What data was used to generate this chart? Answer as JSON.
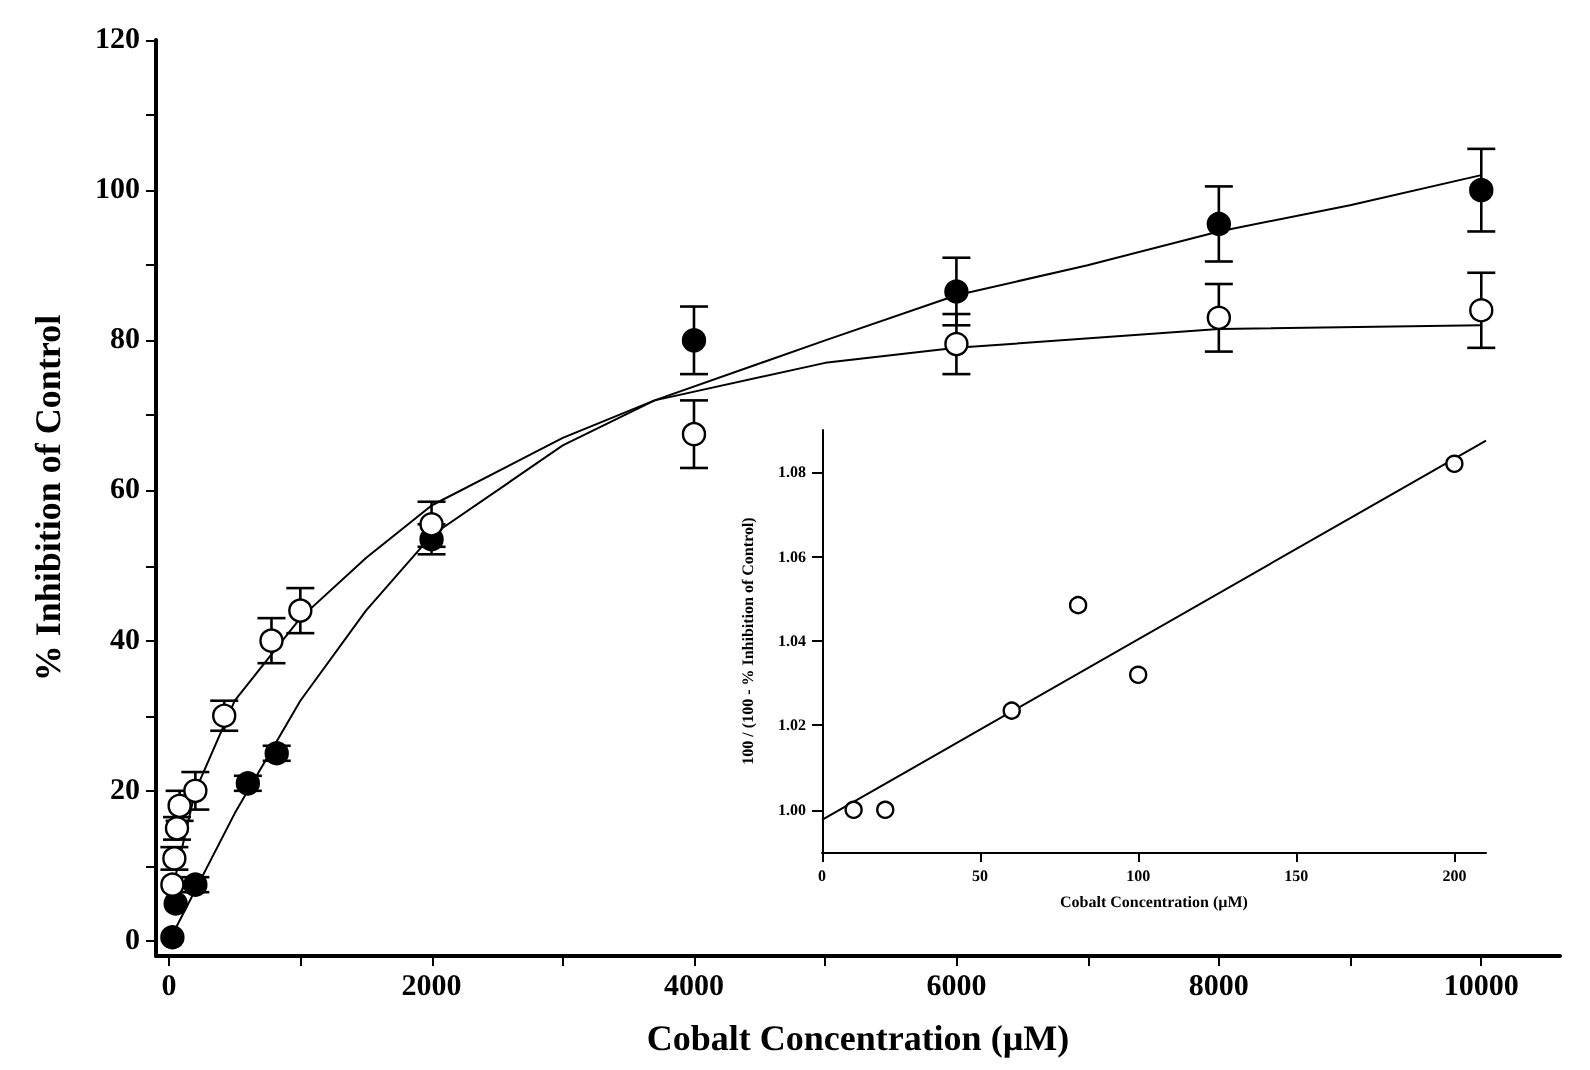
{
  "chart_data": [
    {
      "type": "scatter",
      "xlabel": "Cobalt Concentration (µM)",
      "ylabel": "% Inhibition of Control",
      "xlim": [
        -100,
        10600
      ],
      "ylim": [
        -2,
        120
      ],
      "xticks": [
        0,
        {
          "value": 1000,
          "label": null
        },
        2000,
        {
          "value": 3000,
          "label": null
        },
        4000,
        {
          "value": 5000,
          "label": null
        },
        6000,
        {
          "value": 7000,
          "label": null
        },
        8000,
        {
          "value": 9000,
          "label": null
        },
        10000
      ],
      "yticks": [
        0,
        {
          "value": 10,
          "label": null
        },
        20,
        {
          "value": 30,
          "label": null
        },
        40,
        {
          "value": 50,
          "label": null
        },
        60,
        {
          "value": 70,
          "label": null
        },
        80,
        {
          "value": 90,
          "label": null
        },
        100,
        {
          "value": 110,
          "label": null
        },
        120
      ],
      "marker": "circle",
      "series": [
        {
          "color": "#000000",
          "x": [
            25,
            50,
            200,
            600,
            820,
            2000,
            4000,
            6000,
            8000,
            10000
          ],
          "values": [
            0.5,
            5,
            7.5,
            21,
            25,
            53.5,
            80,
            86.5,
            95.5,
            100
          ],
          "errors": [
            null,
            null,
            1,
            1,
            1,
            2,
            4.5,
            4.5,
            5,
            5.5
          ]
        },
        {
          "color": "#ffffff",
          "x": [
            25,
            40,
            60,
            80,
            200,
            420,
            780,
            1000,
            2000,
            4000,
            6000,
            8000,
            10000
          ],
          "values": [
            7.5,
            11,
            15,
            18,
            20,
            30,
            40,
            44,
            55.5,
            67.5,
            79.5,
            83,
            84
          ],
          "errors": [
            null,
            1.5,
            1.5,
            2,
            2.5,
            2,
            3,
            3,
            3,
            4.5,
            4,
            4.5,
            5
          ]
        },
        {
          "type": "line",
          "marker": "none",
          "color": "#000000",
          "x": [
            0,
            500,
            1000,
            1500,
            2000,
            3000,
            3700,
            5000,
            6000,
            7000,
            8000,
            9000,
            10000
          ],
          "values": [
            0,
            17,
            32,
            44,
            54,
            66,
            72,
            80,
            86,
            90,
            94.5,
            98,
            102
          ]
        },
        {
          "type": "line",
          "marker": "none",
          "color": "#000000",
          "x": [
            0,
            200,
            500,
            1000,
            1500,
            2000,
            3000,
            3700,
            5000,
            6000,
            8000,
            10000
          ],
          "values": [
            5,
            20,
            32,
            43,
            51,
            58,
            67,
            72,
            77,
            79,
            81.5,
            82
          ]
        }
      ]
    },
    {
      "type": "scatter",
      "xlabel": "Cobalt Concentration (µM)",
      "ylabel": "100 / (100 - % Inhibition of Control)",
      "xlim": [
        0,
        210
      ],
      "ylim": [
        0.99,
        1.09
      ],
      "xticks": [
        0,
        50,
        100,
        150,
        200
      ],
      "yticks": [
        {
          "value": 1.0,
          "label": "1.00"
        },
        {
          "value": 1.02,
          "label": "1.02"
        },
        {
          "value": 1.04,
          "label": "1.04"
        },
        {
          "value": 1.06,
          "label": "1.06"
        },
        {
          "value": 1.08,
          "label": "1.08"
        }
      ],
      "marker": "circle",
      "series": [
        {
          "color": "#ffffff",
          "x": [
            10,
            20,
            60,
            81,
            100,
            200
          ],
          "values": [
            1.0,
            1.0,
            1.0235,
            1.0485,
            1.032,
            1.082
          ]
        },
        {
          "type": "line",
          "marker": "none",
          "color": "#000000",
          "x": [
            0,
            210
          ],
          "values": [
            0.9976,
            1.0875
          ]
        }
      ]
    }
  ]
}
